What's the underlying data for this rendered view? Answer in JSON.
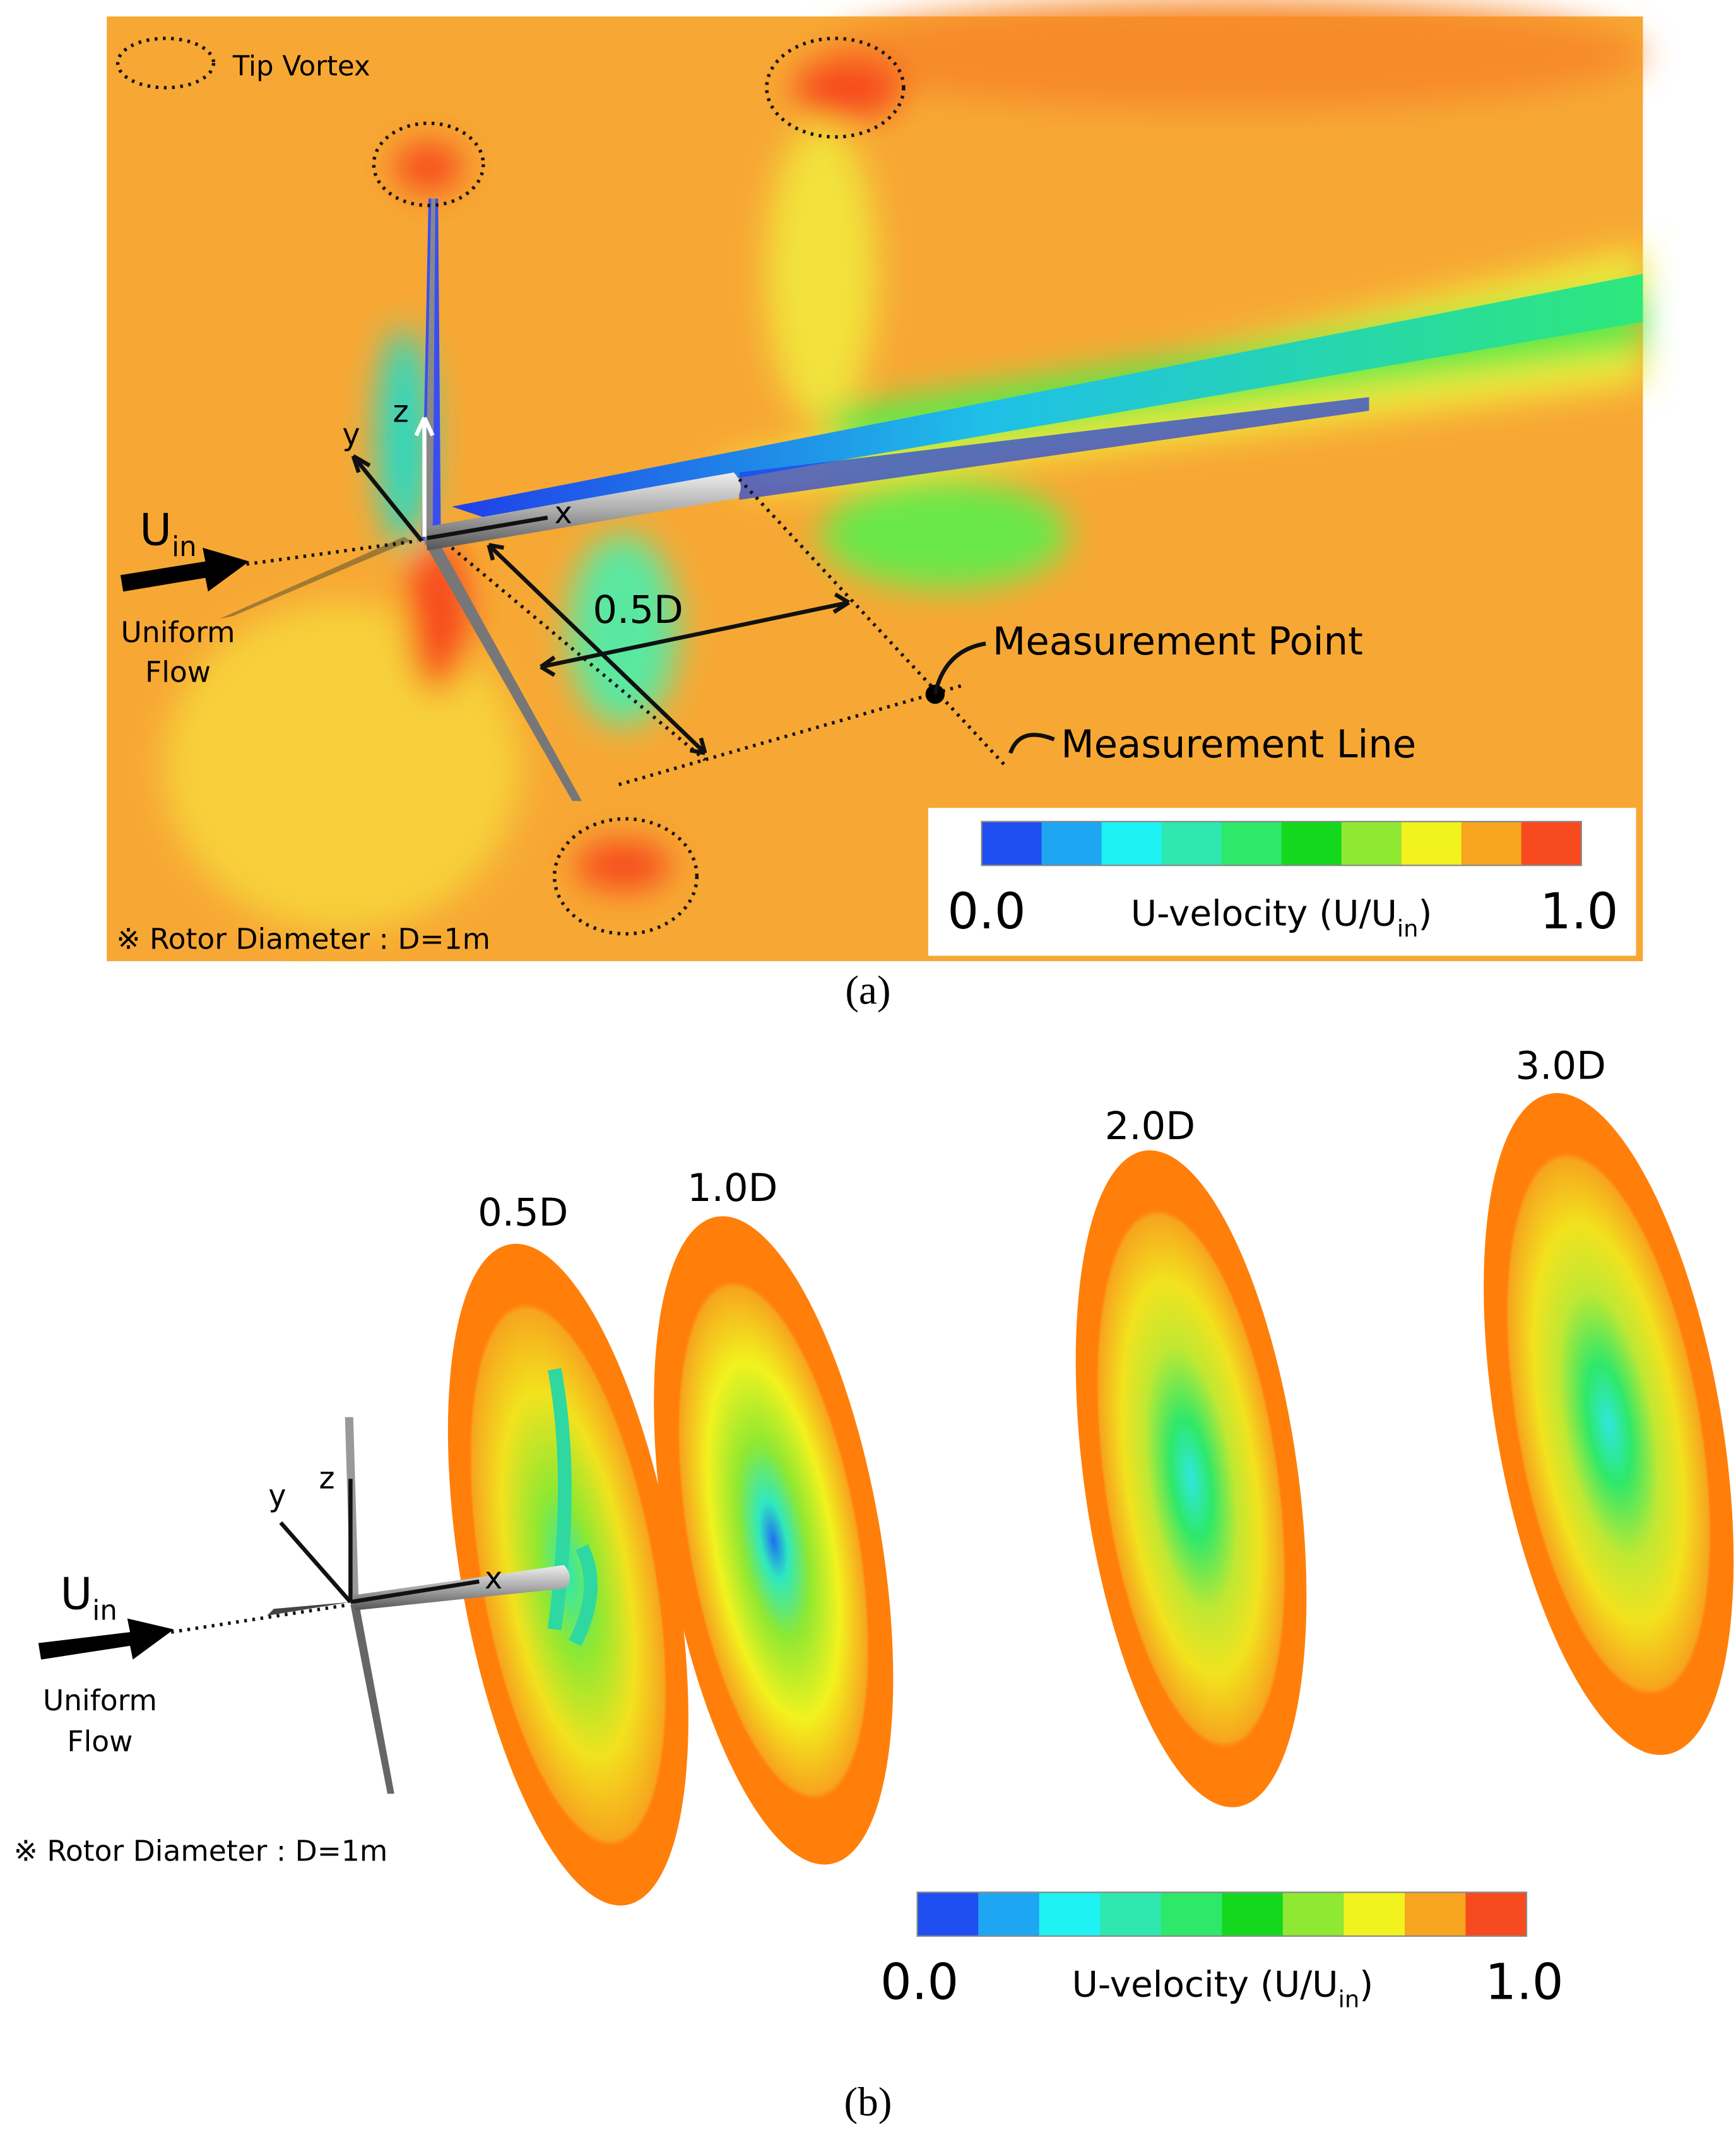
{
  "panel_a": {
    "tip_vortex_label": "Tip Vortex",
    "inflow": {
      "symbol": "U",
      "subscript": "in",
      "line1": "Uniform",
      "line2": "Flow"
    },
    "axes": {
      "y": "y",
      "z": "z",
      "x": "x"
    },
    "distance": "0.5D",
    "measurement_point": "Measurement Point",
    "measurement_line": "Measurement Line",
    "note": "※ Rotor Diameter : D=1m",
    "colorbar": {
      "min_label": "0.0",
      "max_label": "1.0",
      "title": "U-velocity (U/U",
      "title_sub": "in",
      "title_end": ")",
      "colors": [
        "#1f4ff0",
        "#1ea6f2",
        "#1ef2f2",
        "#2ee8b0",
        "#2ee86a",
        "#14d81e",
        "#8fe832",
        "#f2f21e",
        "#f7a51e",
        "#f74a1e"
      ]
    },
    "caption": "(a)"
  },
  "panel_b": {
    "inflow": {
      "symbol": "U",
      "subscript": "in",
      "line1": "Uniform",
      "line2": "Flow"
    },
    "axes": {
      "y": "y",
      "z": "z",
      "x": "x"
    },
    "planes": [
      "0.5D",
      "1.0D",
      "2.0D",
      "3.0D"
    ],
    "note": "※ Rotor Diameter : D=1m",
    "colorbar": {
      "min_label": "0.0",
      "max_label": "1.0",
      "title": "U-velocity (U/U",
      "title_sub": "in",
      "title_end": ")",
      "colors": [
        "#1f4ff0",
        "#1ea6f2",
        "#1ef2f2",
        "#2ee8b0",
        "#2ee86a",
        "#14d81e",
        "#8fe832",
        "#f2f21e",
        "#f7a51e",
        "#f74a1e"
      ]
    },
    "caption": "(b)"
  }
}
